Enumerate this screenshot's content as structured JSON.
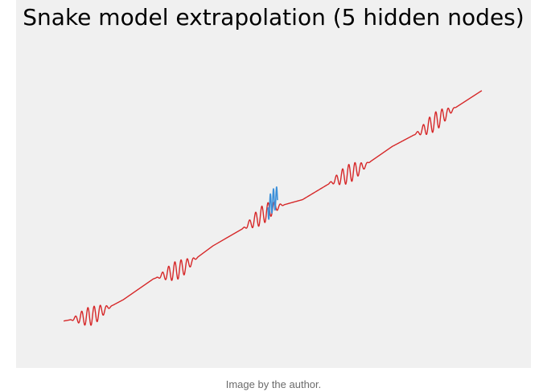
{
  "chart_data": {
    "type": "line",
    "title": "Snake model extrapolation (5 hidden nodes)",
    "xlabel": "",
    "ylabel": "",
    "grid": false,
    "legend": "none",
    "xlim": [
      -20,
      20
    ],
    "ylim": [
      -22,
      24
    ],
    "model": {
      "description_formula": "y = x + A * sin(a * x)^2 / a ... approximated",
      "trend_slope": 1.0,
      "envelope_period": 7.2,
      "oscillation_period": 0.52
    },
    "series": [
      {
        "color": "#d62728",
        "x_range": [
          -17.5,
          17.5
        ],
        "x": [
          -17.5,
          -15,
          -12.5,
          -10,
          -7.5,
          -5,
          -2.5,
          0,
          2.5,
          5,
          7.5,
          10,
          12.5,
          15,
          17.5
        ],
        "y": [
          -17.3,
          -16.5,
          -14.2,
          -11.2,
          -9.6,
          -6.4,
          -3.9,
          -0.9,
          0.3,
          2.9,
          5.0,
          8.0,
          10.3,
          13.3,
          16.1
        ]
      },
      {
        "color": "#3b8fd9",
        "x_range": [
          -0.4,
          0.4
        ],
        "x": [
          -0.4,
          0,
          0.4
        ],
        "y": [
          -1.2,
          0.2,
          0.6
        ]
      }
    ]
  },
  "colors": {
    "plot_background": "#f0f0f0",
    "extrapolation_line": "#d62728",
    "training_data": "#3b8fd9"
  },
  "caption": "Image by the author."
}
